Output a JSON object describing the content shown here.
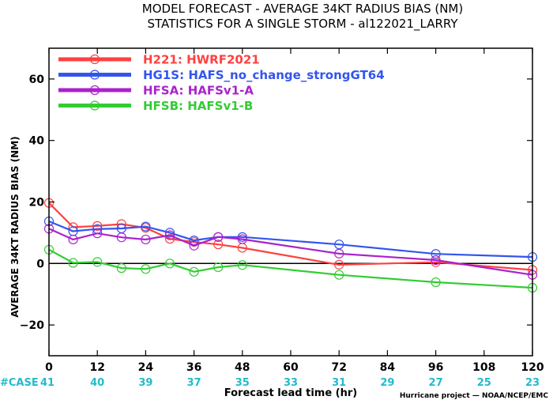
{
  "chart_data": {
    "type": "line",
    "title": "MODEL FORECAST - AVERAGE 34KT RADIUS BIAS (NM)",
    "subtitle": "STATISTICS FOR A SINGLE STORM - al122021_LARRY",
    "xlabel": "Forecast lead time (hr)",
    "ylabel": "AVERAGE 34KT RADIUS BIAS (NM)",
    "xlim": [
      0,
      120
    ],
    "ylim": [
      -30,
      70
    ],
    "xticks": [
      0,
      12,
      24,
      36,
      48,
      60,
      72,
      84,
      96,
      108,
      120
    ],
    "yticks": [
      -20,
      0,
      20,
      40,
      60
    ],
    "ytick_labels": [
      "−20",
      "0",
      "20",
      "40",
      "60"
    ],
    "zero_line": true,
    "grid": false,
    "legend_position": "top-left",
    "series": [
      {
        "name": "H221: HWRF2021",
        "color": "#ff4040",
        "points": [
          [
            0,
            19.7
          ],
          [
            6,
            11.8
          ],
          [
            12,
            12.2
          ],
          [
            18,
            12.8
          ],
          [
            24,
            11.6
          ],
          [
            30,
            8.0
          ],
          [
            36,
            7.0
          ],
          [
            42,
            6.2
          ],
          [
            48,
            5.1
          ],
          [
            72,
            -0.4
          ],
          [
            96,
            0.4
          ],
          [
            120,
            -2.1
          ]
        ]
      },
      {
        "name": "HG1S: HAFS_no_change_strongGT64",
        "color": "#3355ee",
        "points": [
          [
            0,
            13.7
          ],
          [
            6,
            10.5
          ],
          [
            12,
            11.2
          ],
          [
            18,
            11.4
          ],
          [
            24,
            12.0
          ],
          [
            30,
            10.0
          ],
          [
            36,
            7.5
          ],
          [
            42,
            8.6
          ],
          [
            48,
            8.6
          ],
          [
            72,
            6.2
          ],
          [
            96,
            3.1
          ],
          [
            120,
            2.1
          ]
        ]
      },
      {
        "name": "HFSA: HAFSv1-A",
        "color": "#aa22cc",
        "points": [
          [
            0,
            11.3
          ],
          [
            6,
            7.8
          ],
          [
            12,
            9.8
          ],
          [
            18,
            8.5
          ],
          [
            24,
            7.8
          ],
          [
            30,
            9.2
          ],
          [
            36,
            5.8
          ],
          [
            42,
            8.6
          ],
          [
            48,
            7.9
          ],
          [
            72,
            3.2
          ],
          [
            96,
            1.1
          ],
          [
            120,
            -3.7
          ]
        ]
      },
      {
        "name": "HFSB: HAFSv1-B",
        "color": "#33cc33",
        "points": [
          [
            0,
            4.5
          ],
          [
            6,
            0.2
          ],
          [
            12,
            0.5
          ],
          [
            18,
            -1.5
          ],
          [
            24,
            -1.8
          ],
          [
            30,
            0.0
          ],
          [
            36,
            -2.7
          ],
          [
            42,
            -1.2
          ],
          [
            48,
            -0.5
          ],
          [
            72,
            -3.7
          ],
          [
            96,
            -6.1
          ],
          [
            120,
            -7.9
          ]
        ]
      }
    ],
    "cases": {
      "label": "#CASE",
      "color": "#22bbcc",
      "x": [
        0,
        12,
        24,
        36,
        48,
        60,
        72,
        84,
        96,
        108,
        120
      ],
      "values": [
        "41",
        "40",
        "39",
        "37",
        "35",
        "33",
        "31",
        "29",
        "27",
        "25",
        "23"
      ]
    },
    "credit": "Hurricane project — NOAA/NCEP/EMC"
  }
}
